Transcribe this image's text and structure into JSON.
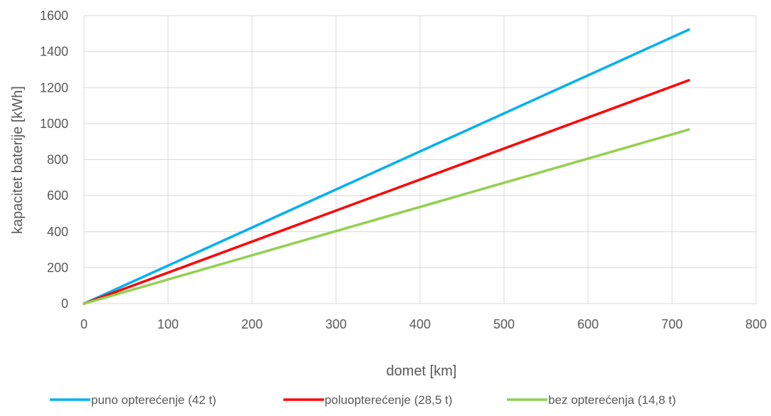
{
  "chart_data": {
    "type": "line",
    "title": "",
    "xlabel": "domet [km]",
    "ylabel": "kapacitet baterije [kWh]",
    "xlim": [
      0,
      800
    ],
    "ylim": [
      0,
      1600
    ],
    "x_ticks": [
      0,
      100,
      200,
      300,
      400,
      500,
      600,
      700,
      800
    ],
    "y_ticks": [
      0,
      200,
      400,
      600,
      800,
      1000,
      1200,
      1400,
      1600
    ],
    "grid": true,
    "legend_position": "bottom",
    "series": [
      {
        "name": "puno opterećenje (42 t)",
        "color": "#00b0f0",
        "x": [
          0,
          720
        ],
        "y": [
          0,
          1522
        ]
      },
      {
        "name": "poluopterećenje (28,5 t)",
        "color": "#ff0000",
        "x": [
          0,
          720
        ],
        "y": [
          0,
          1241
        ]
      },
      {
        "name": "bez opterećenja (14,8 t)",
        "color": "#92d050",
        "x": [
          0,
          720
        ],
        "y": [
          0,
          967
        ]
      }
    ]
  }
}
